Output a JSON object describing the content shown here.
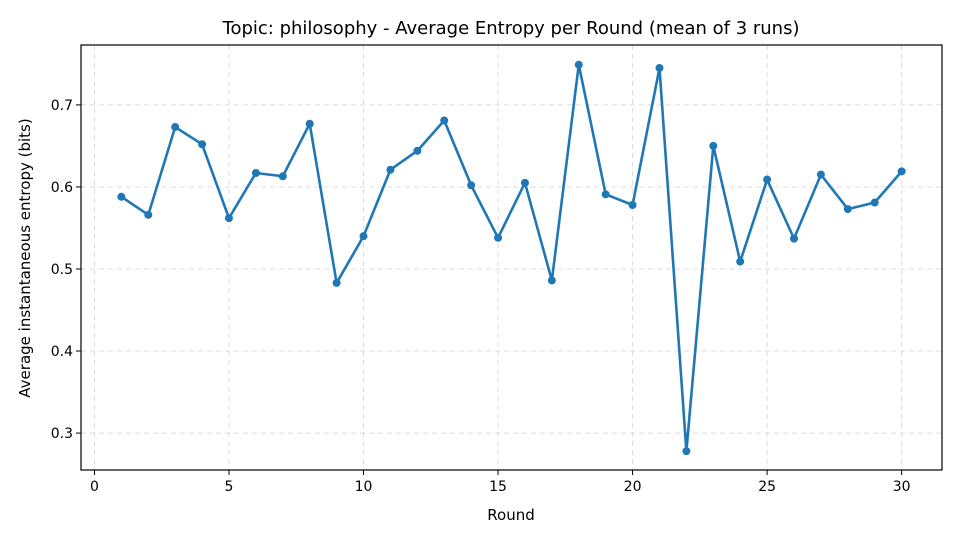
{
  "chart_data": {
    "type": "line",
    "title": "Topic: philosophy - Average Entropy per Round (mean of 3 runs)",
    "xlabel": "Round",
    "ylabel": "Average instantaneous entropy (bits)",
    "xlim": [
      -0.5,
      31.5
    ],
    "ylim": [
      0.255,
      0.773
    ],
    "xticks": [
      0,
      5,
      10,
      15,
      20,
      25,
      30
    ],
    "yticks": [
      0.3,
      0.4,
      0.5,
      0.6,
      0.7
    ],
    "xtick_labels": [
      "0",
      "5",
      "10",
      "15",
      "20",
      "25",
      "30"
    ],
    "ytick_labels": [
      "0.3",
      "0.4",
      "0.5",
      "0.6",
      "0.7"
    ],
    "grid": true,
    "color": "#1f77b4",
    "series": [
      {
        "x": [
          1,
          2,
          3,
          4,
          5,
          6,
          7,
          8,
          9,
          10,
          11,
          12,
          13,
          14,
          15,
          16,
          17,
          18,
          19,
          20,
          21,
          22,
          23,
          24,
          25,
          26,
          27,
          28,
          29,
          30
        ],
        "y": [
          0.588,
          0.566,
          0.673,
          0.652,
          0.562,
          0.617,
          0.613,
          0.677,
          0.483,
          0.54,
          0.621,
          0.644,
          0.681,
          0.602,
          0.538,
          0.605,
          0.486,
          0.749,
          0.591,
          0.578,
          0.745,
          0.278,
          0.65,
          0.509,
          0.609,
          0.537,
          0.615,
          0.573,
          0.581,
          0.619
        ]
      }
    ]
  }
}
